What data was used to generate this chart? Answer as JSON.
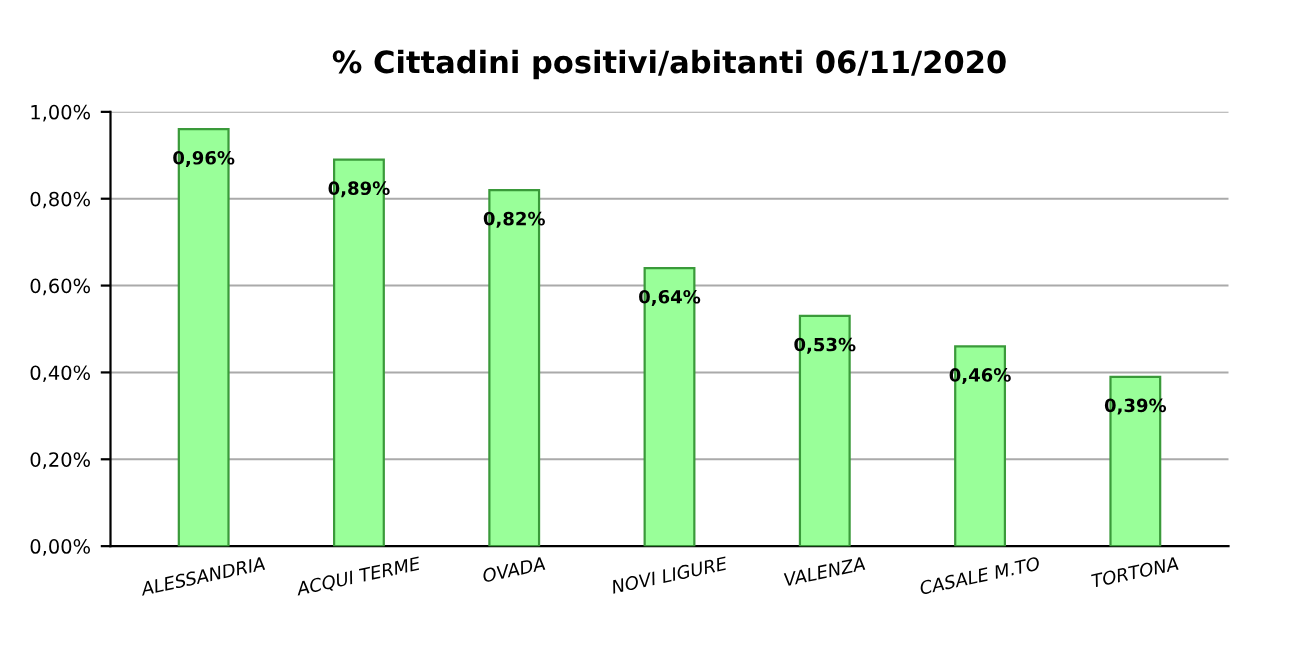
{
  "chart_data": {
    "type": "bar",
    "title": "% Cittadini positivi/abitanti 06/11/2020",
    "categories": [
      "ALESSANDRIA",
      "ACQUI TERME",
      "OVADA",
      "NOVI LIGURE",
      "VALENZA",
      "CASALE M.TO",
      "TORTONA"
    ],
    "values": [
      0.96,
      0.89,
      0.82,
      0.64,
      0.53,
      0.46,
      0.39
    ],
    "value_labels": [
      "0,96%",
      "0,89%",
      "0,82%",
      "0,64%",
      "0,53%",
      "0,46%",
      "0,39%"
    ],
    "color": "#99ff99",
    "ylim": [
      0,
      1.0
    ],
    "yticks": [
      {
        "value": 0,
        "label": "0,00%"
      },
      {
        "value": 0.2,
        "label": "0,20%"
      },
      {
        "value": 0.4,
        "label": "0,40%"
      },
      {
        "value": 0.6,
        "label": "0,60%"
      },
      {
        "value": 0.8,
        "label": "0,80%"
      },
      {
        "value": 1.0,
        "label": "1,00%"
      }
    ],
    "grid": "y",
    "legend": false
  }
}
